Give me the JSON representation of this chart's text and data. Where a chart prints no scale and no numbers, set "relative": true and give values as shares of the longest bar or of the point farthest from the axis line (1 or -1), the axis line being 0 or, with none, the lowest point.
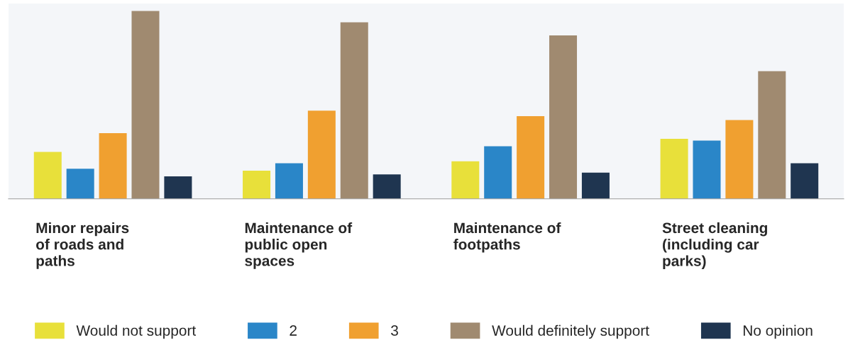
{
  "chart_data": {
    "type": "bar",
    "relative": true,
    "categories": [
      "Minor repairs\nof roads and\npaths",
      "Maintenance of\npublic open\nspaces",
      "Maintenance of\nfootpaths",
      "Street cleaning\n(including car\nparks)"
    ],
    "series": [
      {
        "name": "Would not support",
        "color": "#e8e03a",
        "values": [
          0.25,
          0.15,
          0.2,
          0.32
        ]
      },
      {
        "name": "2",
        "color": "#2a86c8",
        "values": [
          0.16,
          0.19,
          0.28,
          0.31
        ]
      },
      {
        "name": "3",
        "color": "#f0a030",
        "values": [
          0.35,
          0.47,
          0.44,
          0.42
        ]
      },
      {
        "name": "Would definitely support",
        "color": "#a08a70",
        "values": [
          1,
          0.94,
          0.87,
          0.68
        ]
      },
      {
        "name": "No opinion",
        "color": "#1f3550",
        "values": [
          0.12,
          0.13,
          0.14,
          0.19
        ]
      }
    ],
    "legend": "bottom"
  }
}
